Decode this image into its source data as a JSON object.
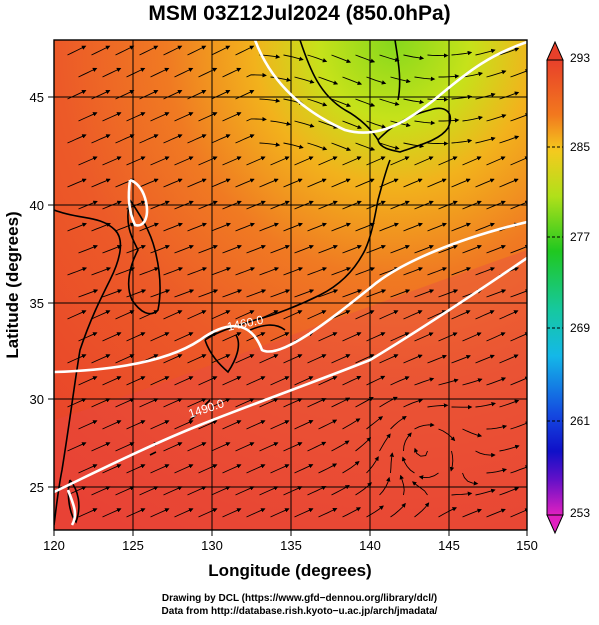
{
  "title": "MSM 03Z12Jul2024 (850.0hPa)",
  "x_axis": {
    "label": "Longitude (degrees)",
    "ticks": [
      "120",
      "125",
      "130",
      "135",
      "140",
      "145",
      "150"
    ],
    "range": [
      120,
      150
    ]
  },
  "y_axis": {
    "label": "Latitude  (degrees)",
    "ticks": [
      "25",
      "30",
      "35",
      "40",
      "45"
    ],
    "range": [
      22.4,
      47.6
    ]
  },
  "colorbar": {
    "ticks": [
      "293",
      "285",
      "277",
      "269",
      "261",
      "253"
    ],
    "range": [
      253,
      293
    ]
  },
  "contours": [
    {
      "label": "1460.0",
      "lon": 132,
      "lat": 33.4
    },
    {
      "label": "1490.0",
      "lon": 130.5,
      "lat": 29.5
    }
  ],
  "credits": [
    "Drawing by DCL (https://www.gfd−dennou.org/library/dcl/)",
    "Data from http://database.rish.kyoto−u.ac.jp/arch/jmadata/"
  ],
  "colors": {
    "warm": "#e8402a",
    "mid": "#f2a020",
    "cool": "#86d81c"
  }
}
